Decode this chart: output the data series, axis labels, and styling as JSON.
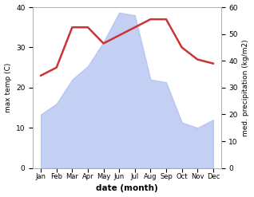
{
  "months": [
    "Jan",
    "Feb",
    "Mar",
    "Apr",
    "May",
    "Jun",
    "Jul",
    "Aug",
    "Sep",
    "Oct",
    "Nov",
    "Dec"
  ],
  "temperature": [
    23,
    25,
    35,
    35,
    31,
    33,
    35,
    37,
    37,
    30,
    27,
    26
  ],
  "precipitation": [
    20,
    24,
    33,
    38,
    47,
    58,
    57,
    33,
    32,
    17,
    15,
    18
  ],
  "temp_color": "#cc3333",
  "precip_color": "#aabbee",
  "temp_ylim": [
    0,
    40
  ],
  "precip_ylim": [
    0,
    60
  ],
  "xlabel": "date (month)",
  "ylabel_left": "max temp (C)",
  "ylabel_right": "med. precipitation (kg/m2)"
}
